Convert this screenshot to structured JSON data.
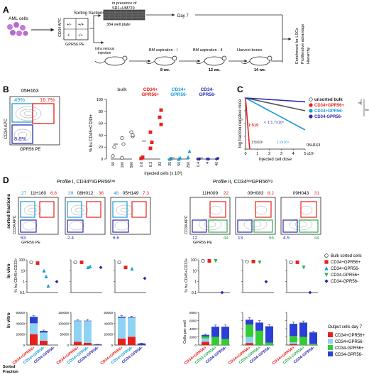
{
  "panels": {
    "A": "A",
    "B": "B",
    "C": "C",
    "D": "D"
  },
  "panelA": {
    "aml_cells": "AML cells",
    "sorting_fractions": "Sorting fractions",
    "y_marker": "CD34 APC",
    "x_marker": "GPR56 PE",
    "quad_tl": "+/-",
    "quad_tr": "+/+",
    "quad_bl": "-/-",
    "quad_br": "-/+",
    "in_vitro_line1": "in presence of",
    "in_vitro_line2": "SR1+UM729",
    "plate": "384 well plate",
    "day": "Day 7",
    "injection_line1": "intra venous",
    "injection_line2": "injection",
    "bm1": "BM aspiration - I",
    "bm2": "BM aspiration - II",
    "harvest": "Harvest bones",
    "wk1": "8 we.",
    "wk2": "12 we.",
    "wk3": "14 we.",
    "outcome": [
      "Enrichment for LSCs",
      "Proliferative advantage",
      "Hierarchy"
    ]
  },
  "panelB": {
    "sample": "05H163",
    "gate_pct": {
      "tl": "49%",
      "tr": "16.7%",
      "bl": "8.8%"
    },
    "y_marker": "CD34 APC",
    "x_marker": "GPR56 PE",
    "ylabel": "% hu CD45+CD33+",
    "xlabel": "injected cells (x 10³)",
    "groups": [
      {
        "label": [
          "bulk"
        ],
        "color": "#555555",
        "ticks": [
          "50",
          "100",
          "500"
        ]
      },
      {
        "label": [
          "CD34+",
          "GPR56+"
        ],
        "color": "#e8201c",
        "ticks": [
          "0.8",
          "8.3",
          "83"
        ]
      },
      {
        "label": [
          "CD34+",
          "GPR56-"
        ],
        "color": "#1a9ad6",
        "ticks": [
          "25",
          "50",
          "250"
        ]
      },
      {
        "label": [
          "CD34-",
          "GPR56-"
        ],
        "color": "#2b2bb0",
        "ticks": [
          "0.4",
          "4",
          "40"
        ]
      }
    ],
    "yticks": [
      "100",
      "80",
      "60",
      "40",
      "20",
      "0"
    ]
  },
  "panelC": {
    "ylabel": "log fraction negative mice",
    "xlabel": "injected cell dose",
    "xticks": [
      "0",
      "1",
      "2",
      "3",
      "4",
      "5"
    ],
    "xunit": "x10⁵",
    "yticks": [
      "0",
      "-1",
      "-2",
      "-3",
      "-4"
    ],
    "sample": "05H163",
    "annotations": {
      "red": "1:519",
      "dark_blue": "< 1:1.7x10⁵",
      "black": "1:5x10⁴",
      "cyan": "1:2x10⁴"
    },
    "legend": [
      {
        "label": "unsorted bulk",
        "color": "#ffffff",
        "stroke": "#333333"
      },
      {
        "label": "CD34+GPR56+",
        "color": "#e8201c",
        "stroke": "#e8201c"
      },
      {
        "label": "CD34+GPR56-",
        "color": "#1a9ad6",
        "stroke": "#1a9ad6"
      },
      {
        "label": "CD34-GPR56-",
        "color": "#2b2bb0",
        "stroke": "#2b2bb0"
      }
    ],
    "significance": [
      "**",
      "*",
      "***"
    ]
  },
  "panelD": {
    "profile1": "Profile I, CD34ʰⁱᵍGPR56ˡᵒʷ",
    "profile2": "Profile II, CD34ˡᵒʷGPR56ʰⁱᵍ",
    "row_sorted": "sorted fractions",
    "row_vivo": "In vivo",
    "row_vitro": "In vitro",
    "sorted_fraction": [
      "Sorted",
      "Fraction"
    ],
    "vivo_ylabel": "% hu CD45+CD33+",
    "vitro_ylabel": "Cells per well",
    "y_marker": "CD34 APC",
    "x_marker": "GPR56 PE",
    "samples1": [
      {
        "name": "11H160",
        "tl": "27",
        "tr": "6.8",
        "bl": "63"
      },
      {
        "name": "08H012",
        "tl": "39",
        "tr": "36",
        "bl": "2.4"
      },
      {
        "name": "05H149",
        "tl": "48",
        "tr": "7.3",
        "bl": "6.6"
      }
    ],
    "samples2": [
      {
        "name": "11H009",
        "tr": "22",
        "bl": "12",
        "br": "44"
      },
      {
        "name": "09H083",
        "tr": "8.2",
        "bl": "13",
        "br": "56"
      },
      {
        "name": "09H043",
        "tr": "31",
        "bl": "4.5",
        "br": "44"
      }
    ],
    "vivo_yticks": [
      "100",
      "10",
      "1",
      "0.1"
    ],
    "vitro_axes1": [
      {
        "ticks": [
          "0",
          "20000",
          "40000",
          "60000"
        ]
      },
      {
        "ticks": [
          "0",
          "50000",
          "100000",
          "150000"
        ]
      },
      {
        "ticks": [
          "0",
          "20000",
          "40000",
          "60000"
        ]
      }
    ],
    "vitro_axes2": {
      "ticks": [
        "0",
        "2000",
        "4000",
        "6000",
        "8000"
      ]
    },
    "fractions1": [
      "CD34+GPR56+",
      "CD34+GPR56-",
      "CD34-GPR56-"
    ],
    "fractions2": [
      "CD34+GPR56+",
      "CD34-GPR56+",
      "CD34-GPR56-"
    ],
    "legend_vivo": [
      {
        "label": "Bulk sorted cells",
        "shape": "circle",
        "color": "#ffffff"
      },
      {
        "label": "CD34+GPR56+",
        "shape": "square",
        "color": "#e8201c"
      },
      {
        "label": "CD34+GPR56-",
        "shape": "triangle",
        "color": "#1a9ad6"
      },
      {
        "label": "CD34-GPR56+",
        "shape": "triangle-down",
        "color": "#33aa55"
      },
      {
        "label": "CD34-GPR56-",
        "shape": "diamond",
        "color": "#2b2bb0"
      }
    ],
    "legend_vitro_title": "Output cells day 7",
    "legend_vitro": [
      {
        "label": "CD34+GPR56+",
        "color": "#e8201c"
      },
      {
        "label": "CD34+GPR56-",
        "color": "#8fd3f2"
      },
      {
        "label": "CD34-GPR56+",
        "color": "#33cc33"
      },
      {
        "label": "CD34-GPR56-",
        "color": "#2b3fd6"
      }
    ]
  },
  "chart_data": [
    {
      "type": "scatter",
      "title": "",
      "xlabel": "injected cells (x 10³)",
      "ylabel": "% hu CD45+CD33+",
      "ylim": [
        0,
        100
      ],
      "series": [
        {
          "name": "bulk",
          "x": [
            "50",
            "50",
            "100",
            "100",
            "100",
            "500",
            "500",
            "500"
          ],
          "values": [
            5,
            20,
            2,
            25,
            35,
            38,
            45,
            40
          ]
        },
        {
          "name": "CD34+GPR56+",
          "x": [
            "0.8",
            "0.8",
            "8.3",
            "8.3",
            "8.3",
            "83",
            "83",
            "83"
          ],
          "values": [
            1,
            3,
            18,
            28,
            45,
            58,
            70,
            82
          ]
        },
        {
          "name": "CD34+GPR56-",
          "x": [
            "25",
            "25",
            "50",
            "50",
            "250",
            "250"
          ],
          "values": [
            0,
            1,
            0,
            2,
            3,
            13
          ]
        },
        {
          "name": "CD34-GPR56-",
          "x": [
            "0.4",
            "0.4",
            "4",
            "4",
            "40",
            "40"
          ],
          "values": [
            0,
            0,
            0,
            0,
            0,
            1
          ]
        }
      ]
    },
    {
      "type": "line",
      "title": "",
      "xlabel": "injected cell dose",
      "ylabel": "log fraction negative mice",
      "xlim": [
        0,
        5
      ],
      "ylim": [
        -4,
        0
      ],
      "series": [
        {
          "name": "unsorted bulk",
          "x": [
            0,
            5
          ],
          "values": [
            0,
            -1.0
          ]
        },
        {
          "name": "CD34+GPR56+",
          "x": [
            0,
            0.35
          ],
          "values": [
            0,
            -4
          ]
        },
        {
          "name": "CD34+GPR56-",
          "x": [
            0,
            5
          ],
          "values": [
            0,
            -2.5
          ]
        },
        {
          "name": "CD34-GPR56-",
          "x": [
            0,
            5
          ],
          "values": [
            0,
            -0.3
          ]
        }
      ]
    },
    {
      "type": "scatter",
      "title": "",
      "ylabel": "% hu CD45+CD33+",
      "ylim": [
        0.1,
        100
      ],
      "samples": [
        {
          "name": "11H160",
          "points": [
            {
              "s": "bulk",
              "v": 60
            },
            {
              "s": "CD34+GPR56+",
              "v": 50
            },
            {
              "s": "CD34+GPR56-",
              "v": 10
            },
            {
              "s": "CD34+GPR56-",
              "v": 3
            },
            {
              "s": "CD34+GPR56-",
              "v": 0.4
            },
            {
              "s": "CD34-GPR56-",
              "v": 1
            }
          ]
        },
        {
          "name": "08H012",
          "points": [
            {
              "s": "bulk",
              "v": 60
            },
            {
              "s": "CD34+GPR56+",
              "v": 60
            },
            {
              "s": "CD34+GPR56-",
              "v": 20
            },
            {
              "s": "CD34+GPR56-",
              "v": 25
            },
            {
              "s": "CD34-GPR56-",
              "v": 20
            }
          ]
        },
        {
          "name": "05H149",
          "points": [
            {
              "s": "bulk",
              "v": 60
            },
            {
              "s": "CD34+GPR56+",
              "v": 20
            },
            {
              "s": "CD34+GPR56-",
              "v": 15
            },
            {
              "s": "CD34-GPR56-",
              "v": 2
            }
          ]
        },
        {
          "name": "11H009",
          "points": [
            {
              "s": "bulk",
              "v": 80
            },
            {
              "s": "CD34+GPR56+",
              "v": 80
            },
            {
              "s": "CD34-GPR56+",
              "v": 80
            },
            {
              "s": "CD34-GPR56-",
              "v": 0.1
            }
          ]
        },
        {
          "name": "09H083",
          "points": [
            {
              "s": "bulk",
              "v": 70
            },
            {
              "s": "CD34+GPR56+",
              "v": 70
            },
            {
              "s": "CD34-GPR56+",
              "v": 60
            },
            {
              "s": "CD34-GPR56-",
              "v": 1
            }
          ]
        },
        {
          "name": "09H043",
          "points": [
            {
              "s": "bulk",
              "v": 60
            },
            {
              "s": "CD34+GPR56+",
              "v": 60
            },
            {
              "s": "CD34-GPR56+",
              "v": 20
            },
            {
              "s": "CD34-GPR56-",
              "v": 0.1
            }
          ]
        }
      ]
    },
    {
      "type": "bar",
      "title": "",
      "ylabel": "Cells per well",
      "stacked": true,
      "series_names": [
        "CD34+GPR56+",
        "CD34+GPR56-",
        "CD34-GPR56+",
        "CD34-GPR56-"
      ],
      "samples": [
        {
          "name": "11H160",
          "max": 60000,
          "categories": [
            "CD34+GPR56+",
            "CD34+GPR56-",
            "CD34-GPR56-"
          ],
          "stacks": [
            [
              20000,
              20000,
              0,
              12000
            ],
            [
              8000,
              15000,
              0,
              3000
            ],
            [
              0,
              0,
              0,
              0
            ]
          ],
          "err": [
            2000,
            1500,
            0
          ]
        },
        {
          "name": "08H012",
          "max": 150000,
          "categories": [
            "CD34+GPR56+",
            "CD34+GPR56-",
            "CD34-GPR56-"
          ],
          "stacks": [
            [
              15000,
              95000,
              0,
              2000
            ],
            [
              10000,
              100000,
              0,
              2000
            ],
            [
              0,
              0,
              0,
              3000
            ]
          ],
          "err": [
            5000,
            6000,
            500
          ]
        },
        {
          "name": "05H149",
          "max": 60000,
          "categories": [
            "CD34+GPR56+",
            "CD34+GPR56-",
            "CD34-GPR56-"
          ],
          "stacks": [
            [
              12000,
              38000,
              0,
              2000
            ],
            [
              15000,
              35000,
              0,
              1000
            ],
            [
              0,
              0,
              0,
              3000
            ]
          ],
          "err": [
            2000,
            2000,
            500
          ]
        },
        {
          "name": "11H009",
          "max": 8000,
          "categories": [
            "CD34+GPR56+",
            "CD34-GPR56+",
            "CD34-GPR56-"
          ],
          "stacks": [
            [
              800,
              800,
              500,
              400
            ],
            [
              0,
              0,
              2000,
              2500
            ],
            [
              0,
              0,
              1500,
              3000
            ]
          ],
          "err": [
            200,
            400,
            400
          ]
        },
        {
          "name": "09H083",
          "max": 8000,
          "categories": [
            "CD34+GPR56+",
            "CD34-GPR56+",
            "CD34-GPR56-"
          ],
          "stacks": [
            [
              500,
              1500,
              3000,
              1200
            ],
            [
              0,
              0,
              3500,
              2000
            ],
            [
              0,
              0,
              600,
              4000
            ]
          ],
          "err": [
            500,
            500,
            400
          ]
        },
        {
          "name": "09H043",
          "max": 8000,
          "categories": [
            "CD34+GPR56+",
            "CD34-GPR56+",
            "CD34-GPR56-"
          ],
          "stacks": [
            [
              300,
              400,
              1500,
              3000
            ],
            [
              0,
              0,
              2000,
              3500
            ],
            [
              0,
              0,
              300,
              2800
            ]
          ],
          "err": [
            400,
            400,
            300
          ]
        }
      ]
    }
  ]
}
